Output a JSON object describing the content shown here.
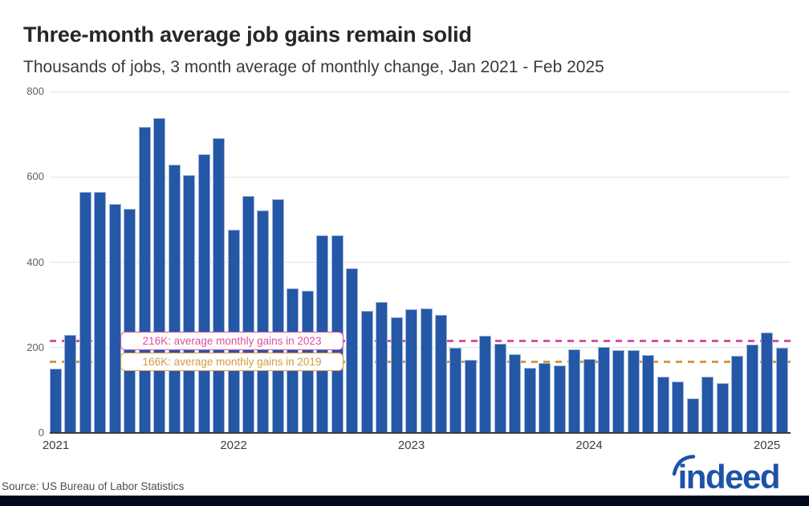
{
  "header": {
    "title": "Three-month average job gains remain solid",
    "subtitle": "Thousands of jobs, 3 month average of monthly change, Jan 2021 - Feb 2025"
  },
  "chart_data": {
    "type": "bar",
    "title": "Three-month average job gains remain solid",
    "ylabel": "Thousands of jobs, 3 month average of monthly change",
    "ylim": [
      0,
      800
    ],
    "y_ticks": [
      0,
      200,
      400,
      600,
      800
    ],
    "grid": true,
    "legend_position": "none",
    "bar_color": "#2557a7",
    "categories": [
      "Jan 2021",
      "Feb 2021",
      "Mar 2021",
      "Apr 2021",
      "May 2021",
      "Jun 2021",
      "Jul 2021",
      "Aug 2021",
      "Sep 2021",
      "Oct 2021",
      "Nov 2021",
      "Dec 2021",
      "Jan 2022",
      "Feb 2022",
      "Mar 2022",
      "Apr 2022",
      "May 2022",
      "Jun 2022",
      "Jul 2022",
      "Aug 2022",
      "Sep 2022",
      "Oct 2022",
      "Nov 2022",
      "Dec 2022",
      "Jan 2023",
      "Feb 2023",
      "Mar 2023",
      "Apr 2023",
      "May 2023",
      "Jun 2023",
      "Jul 2023",
      "Aug 2023",
      "Sep 2023",
      "Oct 2023",
      "Nov 2023",
      "Dec 2023",
      "Jan 2024",
      "Feb 2024",
      "Mar 2024",
      "Apr 2024",
      "May 2024",
      "Jun 2024",
      "Jul 2024",
      "Aug 2024",
      "Sep 2024",
      "Oct 2024",
      "Nov 2024",
      "Dec 2024",
      "Jan 2025",
      "Feb 2025"
    ],
    "values": [
      150,
      230,
      565,
      565,
      537,
      526,
      717,
      738,
      628,
      604,
      653,
      690,
      477,
      555,
      522,
      547,
      338,
      334,
      464,
      463,
      386,
      287,
      307,
      272,
      289,
      292,
      277,
      200,
      172,
      228,
      209,
      184,
      152,
      163,
      159,
      195,
      174,
      202,
      193,
      193,
      183,
      131,
      120,
      81,
      131,
      117,
      181,
      208,
      236,
      200
    ],
    "x_ticks": [
      {
        "label": "2021",
        "index": 0
      },
      {
        "label": "2022",
        "index": 12
      },
      {
        "label": "2023",
        "index": 24
      },
      {
        "label": "2024",
        "index": 36
      },
      {
        "label": "2025",
        "index": 48
      }
    ],
    "reference_lines": [
      {
        "value": 216,
        "label": "216K: average monthly gains in 2023",
        "color": "#db4f9e"
      },
      {
        "value": 166,
        "label": "166K: average monthly gains in 2019",
        "color": "#d49b40"
      }
    ]
  },
  "footer": {
    "source": "Source: US Bureau of Labor Statistics",
    "brand": "indeed",
    "brand_color": "#1d53a8",
    "bar_color": "#00081c"
  }
}
